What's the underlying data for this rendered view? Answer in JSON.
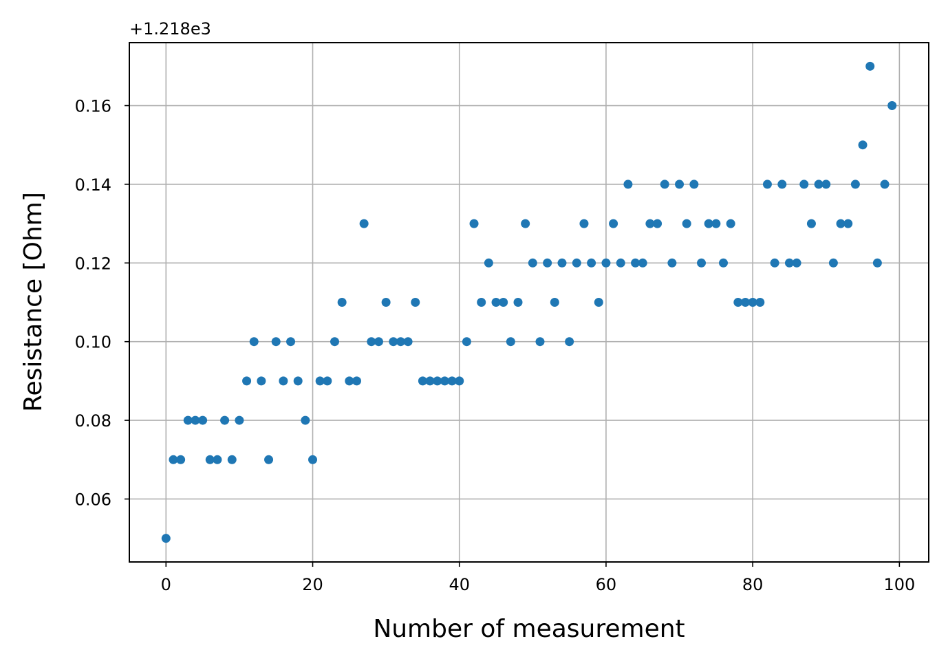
{
  "chart_data": {
    "type": "scatter",
    "title": "",
    "xlabel": "Number of measurement",
    "ylabel": "Resistance [Ohm]",
    "y_offset_label": "+1.218e3",
    "y_offset": 1218,
    "xlim": [
      -5,
      104
    ],
    "ylim": [
      0.044,
      0.176
    ],
    "xticks": [
      0,
      20,
      40,
      60,
      80,
      100
    ],
    "xtick_labels": [
      "0",
      "20",
      "40",
      "60",
      "80",
      "100"
    ],
    "yticks": [
      0.06,
      0.08,
      0.1,
      0.12,
      0.14,
      0.16
    ],
    "ytick_labels": [
      "0.06",
      "0.08",
      "0.10",
      "0.12",
      "0.14",
      "0.16"
    ],
    "grid": true,
    "marker_color": "#1f77b4",
    "series": [
      {
        "x": [
          0,
          1,
          2,
          3,
          4,
          5,
          6,
          7,
          8,
          9,
          10,
          11,
          12,
          13,
          14,
          15,
          16,
          17,
          18,
          19,
          20,
          21,
          22,
          23,
          24,
          25,
          26,
          27,
          28,
          29,
          30,
          31,
          32,
          33,
          34,
          35,
          36,
          37,
          38,
          39,
          40,
          41,
          42,
          43,
          44,
          45,
          46,
          47,
          48,
          49,
          50,
          51,
          52,
          53,
          54,
          55,
          56,
          57,
          58,
          59,
          60,
          61,
          62,
          63,
          64,
          65,
          66,
          67,
          68,
          69,
          70,
          71,
          72,
          73,
          74,
          75,
          76,
          77,
          78,
          79,
          80,
          81,
          82,
          83,
          84,
          85,
          86,
          87,
          88,
          89,
          90,
          91,
          92,
          93,
          94,
          95,
          96,
          97,
          98,
          99
        ],
        "y": [
          0.05,
          0.07,
          0.07,
          0.08,
          0.08,
          0.08,
          0.07,
          0.07,
          0.08,
          0.07,
          0.08,
          0.09,
          0.1,
          0.09,
          0.07,
          0.1,
          0.09,
          0.1,
          0.09,
          0.08,
          0.07,
          0.09,
          0.09,
          0.1,
          0.11,
          0.09,
          0.09,
          0.13,
          0.1,
          0.1,
          0.11,
          0.1,
          0.1,
          0.1,
          0.11,
          0.09,
          0.09,
          0.09,
          0.09,
          0.09,
          0.09,
          0.1,
          0.13,
          0.11,
          0.12,
          0.11,
          0.11,
          0.1,
          0.11,
          0.13,
          0.12,
          0.1,
          0.12,
          0.11,
          0.12,
          0.1,
          0.12,
          0.13,
          0.12,
          0.11,
          0.12,
          0.13,
          0.12,
          0.14,
          0.12,
          0.12,
          0.13,
          0.13,
          0.14,
          0.12,
          0.14,
          0.13,
          0.14,
          0.12,
          0.13,
          0.13,
          0.12,
          0.13,
          0.11,
          0.11,
          0.11,
          0.11,
          0.14,
          0.12,
          0.14,
          0.12,
          0.12,
          0.14,
          0.13,
          0.14,
          0.14,
          0.12,
          0.13,
          0.13,
          0.14,
          0.15,
          0.17,
          0.12,
          0.14,
          0.16
        ]
      }
    ]
  }
}
